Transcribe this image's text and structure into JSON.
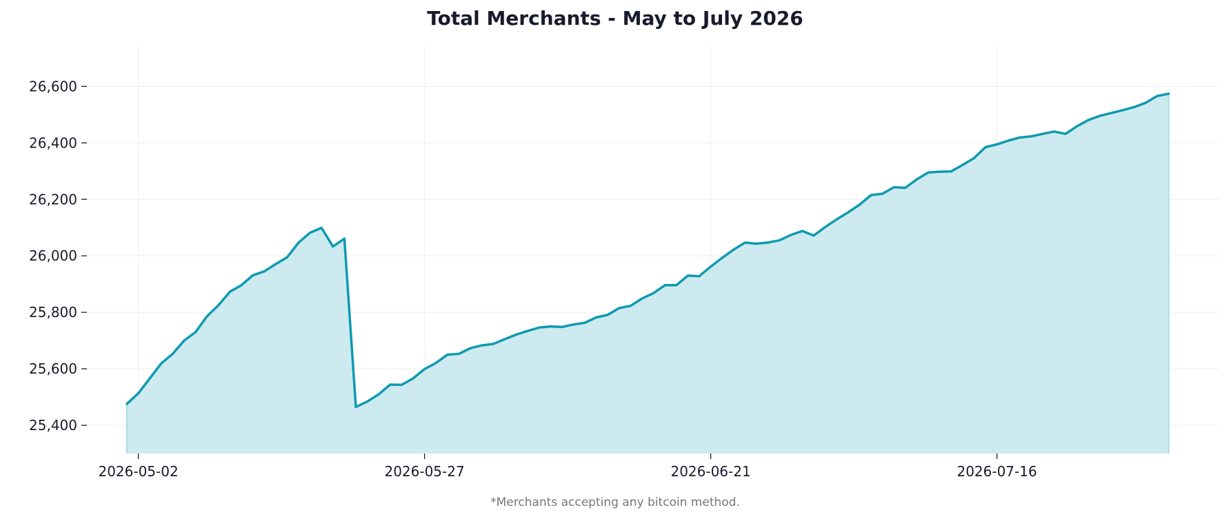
{
  "chart_data": {
    "type": "area",
    "title": "Total Merchants - May to July 2026",
    "footnote": "*Merchants accepting any bitcoin method.",
    "xlabel": "",
    "ylabel": "",
    "start_date": "2026-05-01",
    "x_ticks": [
      "2026-05-02",
      "2026-05-27",
      "2026-06-21",
      "2026-07-16"
    ],
    "y_ticks": [
      25400,
      25600,
      25800,
      26000,
      26200,
      26400,
      26600
    ],
    "y_tick_labels": [
      "25,400",
      "25,600",
      "25,800",
      "26,000",
      "26,200",
      "26,400",
      "26,600"
    ],
    "ylim": [
      25300,
      26740
    ],
    "grid": true,
    "series": [
      {
        "name": "",
        "color": "#0e9aaf",
        "fill": "#cdeaf0",
        "values": [
          25476,
          25513,
          25566,
          25619,
          25653,
          25700,
          25730,
          25786,
          25825,
          25873,
          25896,
          25931,
          25945,
          25971,
          25995,
          26047,
          26082,
          26099,
          26033,
          26061,
          25465,
          25484,
          25510,
          25544,
          25543,
          25566,
          25599,
          25621,
          25650,
          25653,
          25673,
          25683,
          25688,
          25705,
          25721,
          25734,
          25746,
          25750,
          25748,
          25757,
          25763,
          25782,
          25791,
          25815,
          25823,
          25849,
          25868,
          25896,
          25896,
          25930,
          25928,
          25962,
          25993,
          26022,
          26047,
          26043,
          26047,
          26055,
          26074,
          26088,
          26072,
          26102,
          26129,
          26154,
          26181,
          26215,
          26220,
          26243,
          26241,
          26271,
          26295,
          26298,
          26299,
          26322,
          26346,
          26385,
          26395,
          26408,
          26419,
          26423,
          26432,
          26440,
          26432,
          26459,
          26481,
          26496,
          26506,
          26516,
          26527,
          26542,
          26566,
          26574
        ]
      }
    ]
  }
}
